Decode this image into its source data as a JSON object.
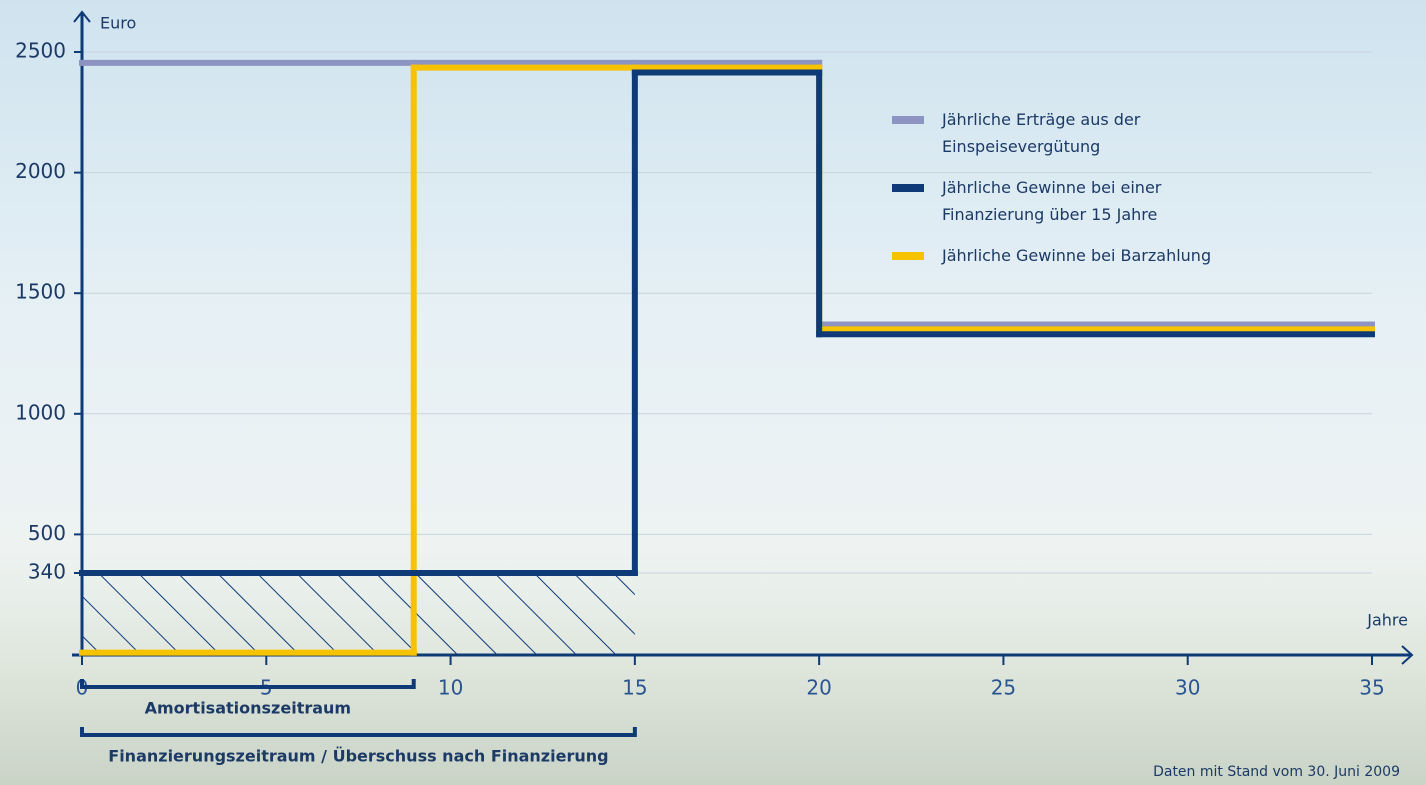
{
  "chart_data": {
    "type": "step",
    "y_label": "Euro",
    "x_label": "Jahre",
    "x": [
      0,
      9,
      15,
      20,
      35
    ],
    "series": [
      {
        "name": "Jährliche Erträge aus der Einspeisevergütung",
        "color": "#8e94c2",
        "values": [
          2455,
          2455,
          2455,
          1370,
          1370
        ]
      },
      {
        "name": "Jährliche Gewinne bei einer Finanzierung über 15 Jahre",
        "color": "#0e3a78",
        "values": [
          340,
          340,
          2415,
          1330,
          1330
        ]
      },
      {
        "name": "Jährliche Gewinne bei Barzahlung",
        "color": "#f7c200",
        "values": [
          10,
          2435,
          2435,
          1350,
          1350
        ]
      }
    ],
    "xlim": [
      0,
      35
    ],
    "ylim": [
      0,
      2500
    ],
    "xticks": [
      0,
      5,
      10,
      15,
      20,
      25,
      30,
      35
    ],
    "yticks": [
      340,
      500,
      1000,
      1500,
      2000,
      2500
    ],
    "grid": true,
    "legend": "upper right",
    "annotations": [
      {
        "text": "Amortisationszeitraum",
        "x": [
          0,
          9
        ]
      },
      {
        "text": "Finanzierungszeitraum / Überschuss nach Finanzierung",
        "x": [
          0,
          15
        ]
      }
    ],
    "source": "Daten mit Stand vom 30. Juni 2009"
  }
}
